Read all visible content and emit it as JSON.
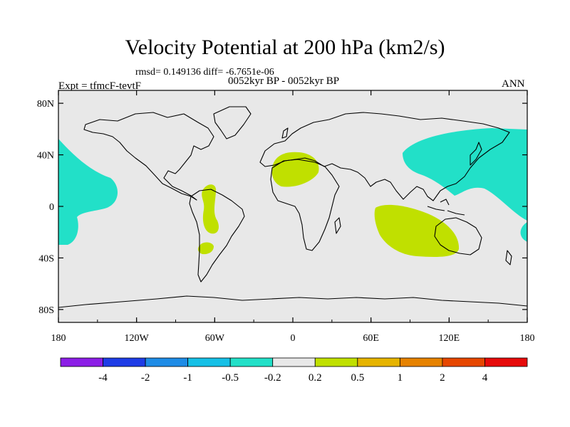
{
  "title": "Velocity Potential at 200 hPa (km2/s)",
  "stats": "rmsd= 0.149136 diff= -6.7651e-06",
  "experiment": "Expt = tfmcF-tevtF",
  "period": "0052kyr BP - 0052kyr BP",
  "season": "ANN",
  "colors": {
    "background_field": "#e8e8e8",
    "negative_shade": "#22e0c8",
    "positive_shade": "#c0e000",
    "coastline": "#000000"
  },
  "axes": {
    "x_ticks": [
      "180",
      "120W",
      "60W",
      "0",
      "60E",
      "120E",
      "180"
    ],
    "y_ticks": [
      "80N",
      "40N",
      "0",
      "40S",
      "80S"
    ]
  },
  "colorbar": {
    "labels": [
      "-4",
      "-2",
      "-1",
      "-0.5",
      "-0.2",
      "0.2",
      "0.5",
      "1",
      "2",
      "4"
    ],
    "colors": [
      "#8c1ee6",
      "#1e3ce6",
      "#1e8ce6",
      "#16c0e6",
      "#22e0c8",
      "#e8e8e8",
      "#c0e000",
      "#e6b400",
      "#e68200",
      "#e64600",
      "#e60a0a"
    ]
  }
}
